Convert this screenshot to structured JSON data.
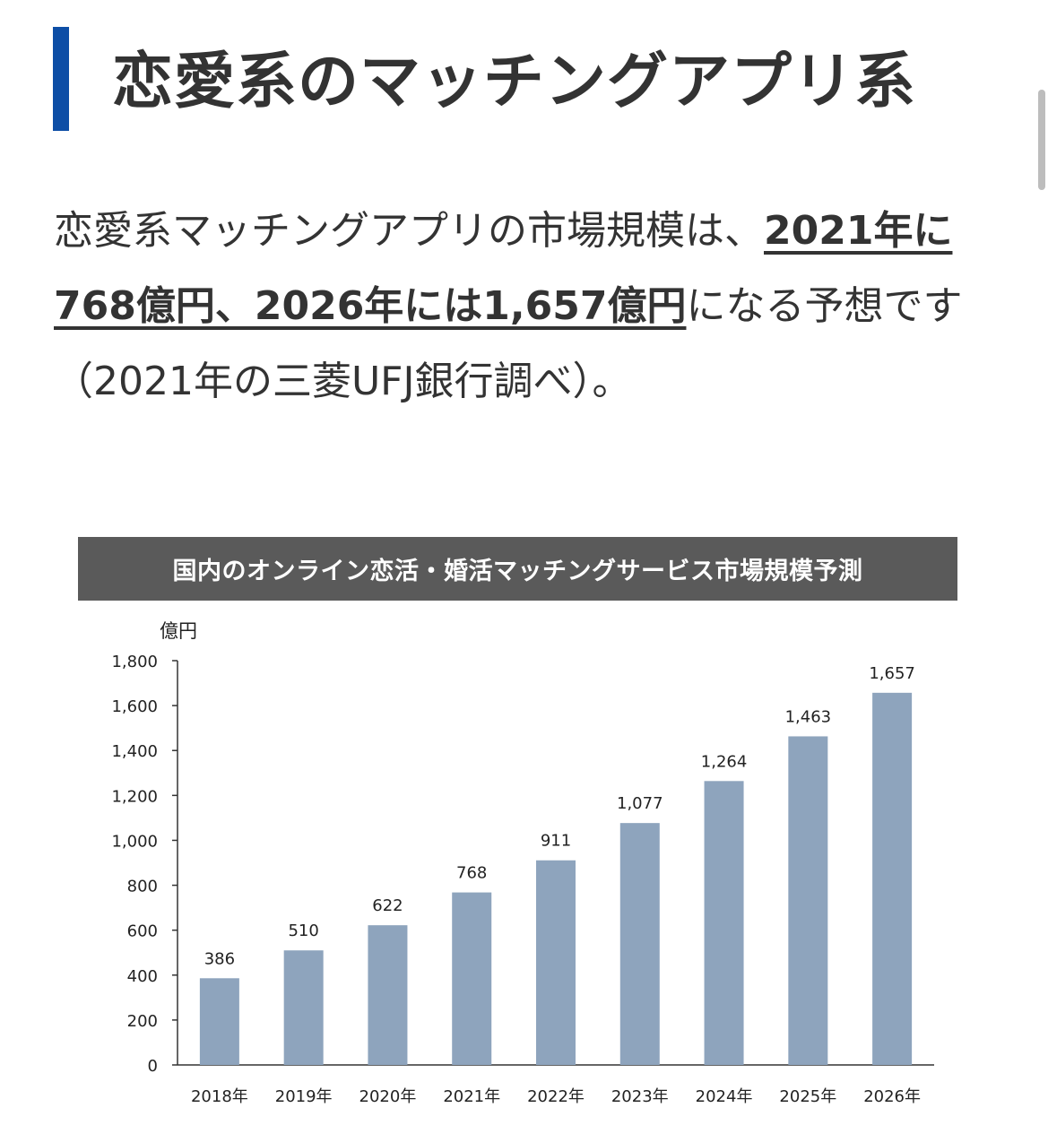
{
  "heading": {
    "title": "恋愛系のマッチングアプリ系",
    "accent_color": "#0d4ea6"
  },
  "paragraph": {
    "seg1": "恋愛系マッチングアプリの市場規模は、",
    "seg2": "2021年に768億円、2026年には1,657億円",
    "seg3": "になる予想です（2021年の三菱UFJ銀行調べ）。"
  },
  "chart_data": {
    "type": "bar",
    "title": "国内のオンライン恋活・婚活マッチングサービス市場規模予測",
    "ylabel": "億円",
    "xlabel": "",
    "categories": [
      "2018年",
      "2019年",
      "2020年",
      "2021年",
      "2022年",
      "2023年",
      "2024年",
      "2025年",
      "2026年"
    ],
    "values": [
      386,
      510,
      622,
      768,
      911,
      1077,
      1264,
      1463,
      1657
    ],
    "value_labels": [
      "386",
      "510",
      "622",
      "768",
      "911",
      "1,077",
      "1,264",
      "1,463",
      "1,657"
    ],
    "ylim": [
      0,
      1800
    ],
    "yticks": [
      0,
      200,
      400,
      600,
      800,
      1000,
      1200,
      1400,
      1600,
      1800
    ],
    "ytick_labels": [
      "0",
      "200",
      "400",
      "600",
      "800",
      "1,000",
      "1,200",
      "1,400",
      "1,600",
      "1,800"
    ],
    "grid": false,
    "bar_color": "#8ea4bd",
    "title_bg_color": "#5a5a5a"
  }
}
